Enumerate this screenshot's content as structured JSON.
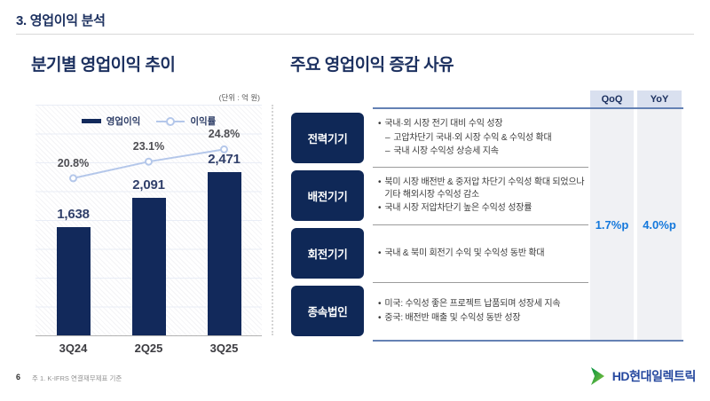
{
  "slide": {
    "header_title": "3. 영업이익 분석"
  },
  "left": {
    "title": "분기별 영업이익 추이",
    "unit_label": "(단위 : 억 원)"
  },
  "chart_data": {
    "type": "bar+line",
    "categories": [
      "3Q24",
      "2Q25",
      "3Q25"
    ],
    "series": [
      {
        "name": "영업이익",
        "type": "bar",
        "values": [
          1638,
          2091,
          2471
        ],
        "labels": [
          "1,638",
          "2,091",
          "2,471"
        ],
        "color": "#12295b"
      },
      {
        "name": "이익률",
        "type": "line",
        "values": [
          20.8,
          23.1,
          24.8
        ],
        "labels": [
          "20.8%",
          "23.1%",
          "24.8%"
        ],
        "color": "#b4c7ea"
      }
    ],
    "unit": "억 원",
    "bar_axis": [
      0,
      3500
    ],
    "line_axis": [
      -1,
      31
    ],
    "grid": "horizontal",
    "legend_position": "top-center"
  },
  "right": {
    "title": "주요 영업이익 증감 사유",
    "col_qoq": "QoQ",
    "col_yoy": "YoY",
    "qoq_value": "1.7%p",
    "yoy_value": "4.0%p",
    "rows": [
      {
        "label": "전력기기",
        "items": [
          {
            "marker": "•",
            "text": "국내·외 시장 전기 대비 수익 성장"
          },
          {
            "marker": "–",
            "text": "고압차단기 국내·외 시장 수익 & 수익성 확대"
          },
          {
            "marker": "–",
            "text": "국내 시장 수익성 상승세 지속"
          }
        ]
      },
      {
        "label": "배전기기",
        "items": [
          {
            "marker": "•",
            "text": "북미 시장 배전반 & 중저압 차단기 수익성 확대 되었으나 기타 해외시장 수익성 감소"
          },
          {
            "marker": "•",
            "text": "국내 시장 저압차단기 높은 수익성 성장률"
          }
        ]
      },
      {
        "label": "회전기기",
        "items": [
          {
            "marker": "•",
            "text": "국내 & 북미 회전기 수익 및 수익성 동반 확대"
          }
        ]
      },
      {
        "label": "종속법인",
        "items": [
          {
            "marker": "•",
            "text": "미국: 수익성 좋은 프로젝트 납품되며 성장세 지속"
          },
          {
            "marker": "•",
            "text": "중국: 배전반 매출 및 수익성 동반 성장"
          }
        ]
      }
    ]
  },
  "footer": {
    "page_number": "6",
    "note": "주 1. K-IFRS 연결재무제표 기준",
    "logo_text": "HD현대일렉트릭"
  },
  "colors": {
    "navy": "#12295b",
    "title_navy": "#1d3160",
    "line_blue": "#b4c7ea",
    "metric_blue": "#1478dc",
    "header_cell_bg": "#d9e0ef",
    "metric_col_bg": "#f0f1f4",
    "table_line_blue": "#6481b4",
    "logo_green": "#00913f",
    "logo_green_light": "#8dc63f",
    "logo_text_blue": "#24479e"
  }
}
